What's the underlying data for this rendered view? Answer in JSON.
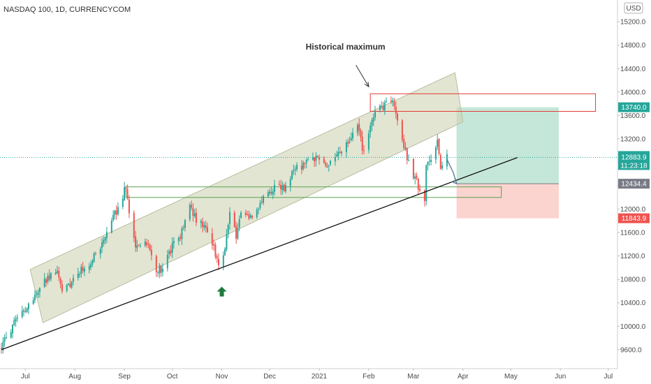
{
  "chart_data": {
    "type": "candlestick",
    "title": "NASDAQ 100, 1D, CURRENCYCOM",
    "currency": "USD",
    "ylim": [
      9300,
      15500
    ],
    "y_ticks": [
      9600,
      10000,
      10400,
      10800,
      11200,
      11600,
      12000,
      12400,
      12800,
      13200,
      13600,
      14000,
      14400,
      14800,
      15200
    ],
    "y_tick_labels": [
      "9600.0",
      "10000.0",
      "10400.0",
      "10800.0",
      "11200.0",
      "11600.0",
      "12000.0",
      "12400.0",
      "12800.0",
      "13200.0",
      "13600.0",
      "14000.0",
      "14400.0",
      "14800.0",
      "15200.0"
    ],
    "x_range": [
      "2020-06-16",
      "2021-07-05"
    ],
    "x_ticks": [
      {
        "date": "2020-07-01",
        "label": "Jul"
      },
      {
        "date": "2020-08-01",
        "label": "Aug"
      },
      {
        "date": "2020-09-01",
        "label": "Sep"
      },
      {
        "date": "2020-10-01",
        "label": "Oct"
      },
      {
        "date": "2020-11-01",
        "label": "Nov"
      },
      {
        "date": "2020-12-01",
        "label": "Dec"
      },
      {
        "date": "2021-01-01",
        "label": "2021"
      },
      {
        "date": "2021-02-01",
        "label": "Feb"
      },
      {
        "date": "2021-03-01",
        "label": "Mar"
      },
      {
        "date": "2021-04-01",
        "label": "Apr"
      },
      {
        "date": "2021-05-01",
        "label": "May"
      },
      {
        "date": "2021-06-01",
        "label": "Jun"
      },
      {
        "date": "2021-07-01",
        "label": "Jul"
      }
    ],
    "price_path": [
      [
        "2020-06-16",
        9650
      ],
      [
        "2020-06-23",
        10000
      ],
      [
        "2020-07-01",
        10280
      ],
      [
        "2020-07-10",
        10650
      ],
      [
        "2020-07-14",
        10800
      ],
      [
        "2020-07-20",
        10950
      ],
      [
        "2020-07-24",
        10650
      ],
      [
        "2020-07-28",
        10700
      ],
      [
        "2020-08-01",
        10850
      ],
      [
        "2020-08-07",
        11000
      ],
      [
        "2020-08-14",
        11200
      ],
      [
        "2020-08-21",
        11550
      ],
      [
        "2020-08-28",
        12050
      ],
      [
        "2020-09-02",
        12380
      ],
      [
        "2020-09-04",
        11950
      ],
      [
        "2020-09-08",
        11350
      ],
      [
        "2020-09-15",
        11450
      ],
      [
        "2020-09-21",
        10950
      ],
      [
        "2020-09-25",
        11000
      ],
      [
        "2020-10-01",
        11350
      ],
      [
        "2020-10-06",
        11500
      ],
      [
        "2020-10-12",
        12100
      ],
      [
        "2020-10-16",
        11800
      ],
      [
        "2020-10-22",
        11700
      ],
      [
        "2020-10-30",
        11100
      ],
      [
        "2020-11-03",
        11300
      ],
      [
        "2020-11-06",
        12000
      ],
      [
        "2020-11-10",
        11550
      ],
      [
        "2020-11-13",
        11900
      ],
      [
        "2020-11-20",
        11900
      ],
      [
        "2020-11-27",
        12150
      ],
      [
        "2020-12-04",
        12400
      ],
      [
        "2020-12-10",
        12350
      ],
      [
        "2020-12-16",
        12650
      ],
      [
        "2020-12-22",
        12750
      ],
      [
        "2020-12-30",
        12880
      ],
      [
        "2021-01-06",
        12750
      ],
      [
        "2021-01-12",
        12900
      ],
      [
        "2021-01-19",
        13100
      ],
      [
        "2021-01-25",
        13400
      ],
      [
        "2021-01-29",
        12950
      ],
      [
        "2021-02-03",
        13550
      ],
      [
        "2021-02-08",
        13700
      ],
      [
        "2021-02-12",
        13800
      ],
      [
        "2021-02-16",
        13880
      ],
      [
        "2021-02-19",
        13500
      ],
      [
        "2021-02-23",
        13100
      ],
      [
        "2021-02-26",
        12800
      ],
      [
        "2021-03-04",
        12400
      ],
      [
        "2021-03-05",
        12300
      ],
      [
        "2021-03-08",
        12200
      ],
      [
        "2021-03-09",
        12700
      ],
      [
        "2021-03-12",
        12850
      ],
      [
        "2021-03-16",
        13150
      ],
      [
        "2021-03-18",
        12750
      ],
      [
        "2021-03-22",
        12880
      ]
    ],
    "current_price": {
      "value": 12883.9,
      "label": "12883.9",
      "countdown": "11:23:18"
    },
    "price_boxes": [
      {
        "value": 13740.0,
        "label": "13740.0",
        "color": "#26a69a"
      },
      {
        "value": 12434.4,
        "label": "12434.4",
        "color": "#787b86"
      },
      {
        "value": 11843.9,
        "label": "11843.9",
        "color": "#ef5350"
      }
    ],
    "channel": {
      "corners": [
        [
          "2020-07-04",
          10970
        ],
        [
          "2021-03-27",
          14330
        ],
        [
          "2021-04-01",
          13490
        ],
        [
          "2020-07-12",
          10060
        ]
      ],
      "fill": "#cfd4b4"
    },
    "trendline": {
      "from": [
        "2020-06-16",
        9600
      ],
      "to": [
        "2021-05-05",
        12880
      ]
    },
    "support_zone": {
      "x": [
        "2020-09-02",
        "2021-04-25"
      ],
      "y": [
        12380,
        12200
      ],
      "color": "#5aa14f"
    },
    "resistance_zone": {
      "x": [
        "2021-02-02",
        "2021-06-23"
      ],
      "y": [
        13970,
        13670
      ],
      "color": "#e53935"
    },
    "position": {
      "x": [
        "2021-03-28",
        "2021-05-31"
      ],
      "entry": 12434.4,
      "target": 13740.0,
      "stop": 11843.9,
      "profit_color": "#b2dfcc",
      "loss_color": "#f9c4bf"
    },
    "projection": [
      [
        "2021-03-22",
        12850
      ],
      [
        "2021-03-26",
        12620
      ],
      [
        "2021-03-28",
        12434
      ]
    ],
    "annotation": {
      "text": "Historical maximum",
      "arrow_from": [
        "2021-01-24",
        14460
      ],
      "arrow_to": [
        "2021-02-01",
        14090
      ]
    },
    "up_arrow": {
      "date": "2020-11-01",
      "value": 10580,
      "color": "#1e7a3c"
    }
  }
}
